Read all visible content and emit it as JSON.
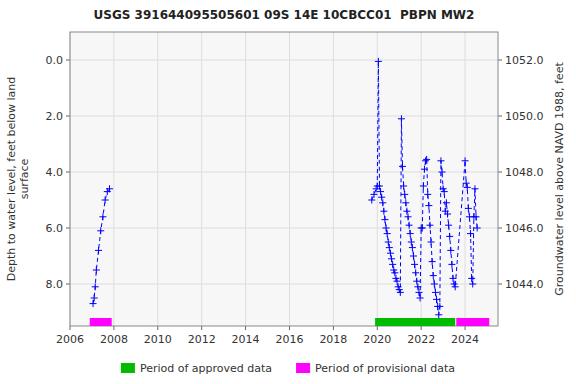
{
  "chart_data": {
    "type": "line",
    "title": "USGS 391644095505601 09S 14E 10CBCC01  PBPN MW2",
    "ylabel": "Depth to water level, feet below land\nsurface",
    "y2label": "Groundwater level above NAVD 1988, feet",
    "xlim": [
      2006,
      2025.5
    ],
    "xticks": [
      2006,
      2008,
      2010,
      2012,
      2014,
      2016,
      2018,
      2020,
      2022,
      2024
    ],
    "ylim": [
      9.5,
      -1.0
    ],
    "yticks": [
      {
        "value": 0.0,
        "label": "0.0"
      },
      {
        "value": 2.0,
        "label": "2.0"
      },
      {
        "value": 4.0,
        "label": "4.0"
      },
      {
        "value": 6.0,
        "label": "6.0"
      },
      {
        "value": 8.0,
        "label": "8.0"
      }
    ],
    "y2lim": [
      1042.5,
      1053.0
    ],
    "y2ticks": [
      {
        "value": 1044.0,
        "label": "1044.0"
      },
      {
        "value": 1046.0,
        "label": "1046.0"
      },
      {
        "value": 1048.0,
        "label": "1048.0"
      },
      {
        "value": 1050.0,
        "label": "1050.0"
      },
      {
        "value": 1052.0,
        "label": "1052.0"
      }
    ],
    "grid": true,
    "legend": "bottom",
    "series": [
      {
        "color": "#0000ff",
        "marker": "plus",
        "line_style": "dashed",
        "x": [
          2007.05,
          2007.1,
          2007.15,
          2007.2,
          2007.3,
          2007.4,
          2007.5,
          2007.6,
          2007.7,
          2007.8
        ],
        "values": [
          8.7,
          8.5,
          8.1,
          7.5,
          6.8,
          6.1,
          5.6,
          5.0,
          4.7,
          4.6
        ]
      },
      {
        "color": "#0000ff",
        "marker": "plus",
        "line_style": "dashed",
        "x": [
          2019.75,
          2019.85,
          2019.95,
          2020.0,
          2020.05,
          2020.1,
          2020.15,
          2020.2,
          2020.25,
          2020.3,
          2020.35,
          2020.4,
          2020.45,
          2020.5,
          2020.55,
          2020.6,
          2020.65,
          2020.7,
          2020.75,
          2020.8,
          2020.85,
          2020.9,
          2020.95,
          2021.0,
          2021.05,
          2021.1,
          2021.15,
          2021.2,
          2021.25,
          2021.3,
          2021.35,
          2021.4,
          2021.45,
          2021.5,
          2021.55,
          2021.6,
          2021.65,
          2021.7,
          2021.75,
          2021.8,
          2021.85,
          2021.9,
          2021.95,
          2022.0,
          2022.05,
          2022.1,
          2022.15,
          2022.2,
          2022.25,
          2022.3,
          2022.35,
          2022.4,
          2022.45,
          2022.5,
          2022.55,
          2022.6,
          2022.65,
          2022.7,
          2022.75,
          2022.8,
          2022.85,
          2022.9,
          2022.95,
          2023.0,
          2023.05,
          2023.1,
          2023.15,
          2023.2,
          2023.25,
          2023.3,
          2023.35,
          2023.4,
          2023.45,
          2023.5,
          2023.55,
          2024.0,
          2024.05,
          2024.1,
          2024.15,
          2024.2,
          2024.25,
          2024.3,
          2024.35,
          2024.4,
          2024.45,
          2024.5,
          2024.55
        ],
        "values": [
          5.0,
          4.8,
          4.6,
          4.5,
          0.05,
          4.5,
          4.7,
          4.9,
          5.1,
          5.4,
          5.7,
          6.0,
          6.2,
          6.5,
          6.7,
          6.9,
          7.1,
          7.3,
          7.5,
          7.6,
          7.8,
          7.9,
          8.1,
          8.2,
          8.3,
          2.1,
          3.8,
          4.5,
          4.8,
          5.1,
          5.4,
          5.6,
          5.9,
          6.2,
          6.5,
          6.7,
          7.0,
          7.3,
          7.6,
          7.9,
          8.1,
          8.3,
          8.5,
          6.0,
          6.0,
          4.5,
          3.9,
          3.6,
          3.55,
          4.8,
          5.2,
          5.9,
          6.5,
          7.2,
          7.7,
          8.0,
          8.3,
          8.55,
          8.8,
          9.1,
          8.8,
          3.6,
          4.0,
          4.6,
          4.7,
          5.4,
          5.1,
          5.5,
          5.9,
          6.3,
          6.8,
          7.3,
          7.8,
          8.0,
          8.1,
          3.6,
          4.4,
          4.55,
          5.3,
          5.6,
          6.2,
          7.8,
          8.0,
          5.6,
          4.6,
          5.6,
          6.0
        ]
      }
    ],
    "periods": [
      {
        "name": "Period of approved data",
        "color": "#00bb00",
        "ranges": [
          [
            2019.9,
            2023.55
          ]
        ]
      },
      {
        "name": "Period of provisional data",
        "color": "#ff00ff",
        "ranges": [
          [
            2006.9,
            2007.9
          ],
          [
            2023.6,
            2025.1
          ]
        ]
      }
    ]
  }
}
